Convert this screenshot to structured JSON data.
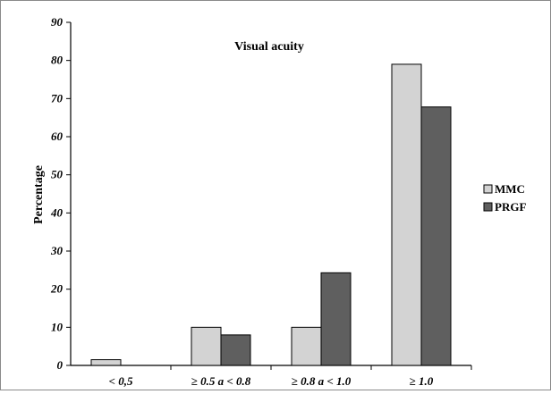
{
  "chart_data": {
    "type": "bar",
    "title": "Visual acuity",
    "xlabel": "",
    "ylabel": "Percentage",
    "ylim": [
      0,
      90
    ],
    "yticks": [
      0,
      10,
      20,
      30,
      40,
      50,
      60,
      70,
      80,
      90
    ],
    "categories": [
      "< 0,5",
      "≥ 0.5 a < 0.8",
      "≥ 0.8 a < 1.0",
      "≥ 1.0"
    ],
    "series": [
      {
        "name": "MMC",
        "color": "#d3d3d3",
        "values": [
          1.5,
          10,
          10,
          79
        ]
      },
      {
        "name": "PRGF",
        "color": "#5f5f5f",
        "values": [
          0,
          8,
          24.3,
          67.8
        ]
      }
    ],
    "grid": false,
    "legend_position": "right"
  }
}
